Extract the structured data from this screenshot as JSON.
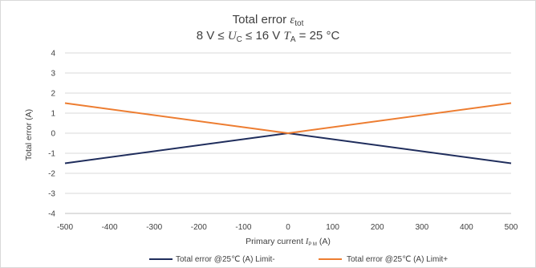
{
  "chart_data": {
    "type": "line",
    "title": {
      "main": "Total error ",
      "symbol": "ε",
      "symbol_sub": "tot",
      "cond_1": "8 V ≤ ",
      "cond_sym": "U",
      "cond_sub": "C",
      "cond_2": " ≤ 16 V  ",
      "ta_sym": "T",
      "ta_sub": "A",
      "cond_3": " = 25 °C"
    },
    "xlabel": {
      "text": "Primary current ",
      "sym": "I",
      "sub": "P M",
      "unit": " (A)"
    },
    "ylabel": "Total error (A)",
    "xlim": [
      -500,
      500
    ],
    "ylim": [
      -4,
      4
    ],
    "xticks": [
      -500,
      -400,
      -300,
      -200,
      -100,
      0,
      100,
      200,
      300,
      400,
      500
    ],
    "yticks": [
      -4,
      -3,
      -2,
      -1,
      0,
      1,
      2,
      3,
      4
    ],
    "grid": "horizontal",
    "legend_position": "bottom",
    "series": [
      {
        "name": "Total error @25℃ (A) Limit-",
        "color": "#1f2d5c",
        "x": [
          -500,
          0,
          500
        ],
        "y": [
          -1.5,
          0,
          -1.5
        ]
      },
      {
        "name": "Total error @25℃ (A) Limit+",
        "color": "#ed7d31",
        "x": [
          -500,
          0,
          500
        ],
        "y": [
          1.5,
          0,
          1.5
        ]
      }
    ]
  }
}
